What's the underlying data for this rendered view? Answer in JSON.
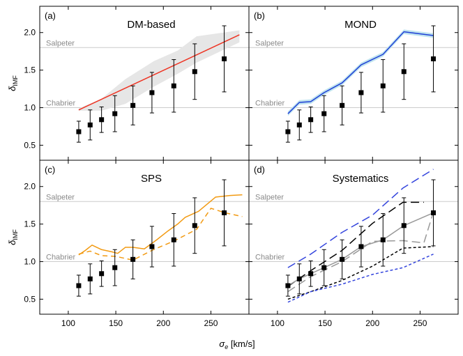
{
  "figure": {
    "xlabel": "σ",
    "xlabel_sub": "e",
    "xlabel_unit": "[km/s]",
    "ylabel": "δ",
    "ylabel_sub": "IMF",
    "xlim": [
      70,
      290
    ],
    "ylim": [
      0.3,
      2.35
    ],
    "xticks": [
      100,
      150,
      200,
      250
    ],
    "yticks": [
      0.5,
      1.0,
      1.5,
      2.0
    ],
    "xtick_labels": [
      "100",
      "150",
      "200",
      "250"
    ],
    "ytick_labels": [
      "0.5",
      "1.0",
      "1.5",
      "2.0"
    ]
  },
  "reference_lines": [
    {
      "name": "Salpeter",
      "value": 1.8
    },
    {
      "name": "Chabrier",
      "value": 1.0
    }
  ],
  "colors": {
    "dm": "#ee3322",
    "dm_band": "#e6e6e6",
    "mond": "#1f3fd6",
    "mond_band": "#bfe3ef",
    "sps": "#f29a12",
    "sys_blue": "#3344dd",
    "sys_black": "#000000",
    "sys_gray": "#999999",
    "ref_line": "#cccccc",
    "ref_text": "#8a8a8a"
  },
  "chart_data": [
    {
      "type": "line",
      "panel_label": "(a)",
      "title": "DM-based",
      "data_points": {
        "name": "observed",
        "x": [
          111,
          123,
          135,
          149,
          168,
          188,
          211,
          233,
          264
        ],
        "y": [
          0.68,
          0.77,
          0.84,
          0.92,
          1.03,
          1.2,
          1.29,
          1.48,
          1.65
        ],
        "yerr": [
          0.14,
          0.2,
          0.17,
          0.24,
          0.26,
          0.27,
          0.35,
          0.37,
          0.44
        ]
      },
      "series": [
        {
          "name": "DM-based prediction",
          "style": "solid",
          "color": "dm",
          "x": [
            111,
            280
          ],
          "y": [
            0.97,
            1.97
          ]
        }
      ],
      "bands": [
        {
          "name": "DM-based range",
          "color": "dm_band",
          "x": [
            111,
            135,
            160,
            190,
            215,
            235,
            280
          ],
          "lower": [
            0.96,
            0.96,
            1.05,
            1.28,
            1.45,
            1.6,
            1.87
          ],
          "upper": [
            0.99,
            1.12,
            1.38,
            1.62,
            1.76,
            1.95,
            2.03
          ]
        }
      ]
    },
    {
      "type": "line",
      "panel_label": "(b)",
      "title": "MOND",
      "data_points": {
        "name": "observed",
        "x": [
          111,
          123,
          135,
          149,
          168,
          188,
          211,
          233,
          264
        ],
        "y": [
          0.68,
          0.77,
          0.84,
          0.92,
          1.03,
          1.2,
          1.29,
          1.48,
          1.65
        ],
        "yerr": [
          0.14,
          0.2,
          0.17,
          0.24,
          0.26,
          0.27,
          0.35,
          0.37,
          0.44
        ]
      },
      "series": [
        {
          "name": "MOND prediction",
          "style": "solid",
          "color": "mond",
          "x": [
            111,
            123,
            135,
            149,
            168,
            188,
            211,
            233,
            264
          ],
          "y": [
            0.92,
            1.07,
            1.08,
            1.2,
            1.33,
            1.57,
            1.71,
            2.01,
            1.96
          ]
        }
      ],
      "bands": [
        {
          "name": "MOND range",
          "color": "mond_band",
          "x": [
            111,
            123,
            135,
            149,
            168,
            188,
            211,
            233,
            264
          ],
          "lower": [
            0.89,
            1.04,
            1.05,
            1.17,
            1.3,
            1.54,
            1.68,
            1.98,
            1.93
          ],
          "upper": [
            0.95,
            1.1,
            1.11,
            1.23,
            1.36,
            1.6,
            1.74,
            2.04,
            1.99
          ]
        }
      ]
    },
    {
      "type": "line",
      "panel_label": "(c)",
      "title": "SPS",
      "data_points": {
        "name": "observed",
        "x": [
          111,
          123,
          135,
          149,
          168,
          188,
          211,
          233,
          264
        ],
        "y": [
          0.68,
          0.77,
          0.84,
          0.92,
          1.03,
          1.2,
          1.29,
          1.48,
          1.65
        ],
        "yerr": [
          0.14,
          0.2,
          0.17,
          0.24,
          0.26,
          0.27,
          0.35,
          0.37,
          0.44
        ]
      },
      "series": [
        {
          "name": "SPS solid",
          "style": "solid",
          "color": "sps",
          "x": [
            111,
            118,
            125,
            135,
            146,
            152,
            160,
            168,
            180,
            193,
            205,
            215,
            223,
            237,
            255,
            270,
            283
          ],
          "y": [
            1.09,
            1.15,
            1.22,
            1.16,
            1.13,
            1.11,
            1.19,
            1.19,
            1.17,
            1.29,
            1.41,
            1.5,
            1.59,
            1.67,
            1.86,
            1.88,
            1.89
          ]
        },
        {
          "name": "SPS dashed",
          "style": "dashed",
          "color": "sps",
          "x": [
            111,
            123,
            135,
            150,
            168,
            188,
            212,
            235,
            250,
            265,
            283
          ],
          "y": [
            1.1,
            1.14,
            1.08,
            1.07,
            1.02,
            1.15,
            1.28,
            1.43,
            1.71,
            1.65,
            1.6
          ]
        }
      ],
      "bands": []
    },
    {
      "type": "line",
      "panel_label": "(d)",
      "title": "Systematics",
      "data_points": {
        "name": "observed",
        "x": [
          111,
          123,
          135,
          149,
          168,
          188,
          211,
          233,
          264
        ],
        "y": [
          0.68,
          0.77,
          0.84,
          0.92,
          1.03,
          1.2,
          1.29,
          1.48,
          1.65
        ],
        "yerr": [
          0.14,
          0.2,
          0.17,
          0.24,
          0.26,
          0.27,
          0.35,
          0.37,
          0.44
        ]
      },
      "series": [
        {
          "name": "upper blue long-dash",
          "style": "longdash",
          "color": "sys_blue",
          "x": [
            111,
            135,
            168,
            200,
            232,
            264
          ],
          "y": [
            0.92,
            1.1,
            1.39,
            1.62,
            1.98,
            2.23
          ]
        },
        {
          "name": "upper black long-dash",
          "style": "longdash",
          "color": "sys_black",
          "x": [
            111,
            135,
            168,
            200,
            232,
            254
          ],
          "y": [
            0.67,
            0.88,
            1.15,
            1.51,
            1.79,
            1.79
          ]
        },
        {
          "name": "central gray solid",
          "style": "solid",
          "color": "sys_gray",
          "x": [
            111,
            123,
            135,
            149,
            168,
            188,
            211,
            233,
            264
          ],
          "y": [
            0.68,
            0.77,
            0.84,
            0.92,
            1.03,
            1.2,
            1.29,
            1.48,
            1.65
          ]
        },
        {
          "name": "gray long-dash",
          "style": "longdash",
          "color": "sys_gray",
          "x": [
            111,
            135,
            168,
            200,
            232,
            254,
            264
          ],
          "y": [
            0.6,
            0.8,
            1.0,
            1.27,
            1.28,
            1.25,
            1.66
          ]
        },
        {
          "name": "lower black short-dash",
          "style": "shortdash",
          "color": "sys_black",
          "x": [
            111,
            135,
            168,
            200,
            232,
            264
          ],
          "y": [
            0.5,
            0.6,
            0.75,
            0.94,
            1.18,
            1.2
          ]
        },
        {
          "name": "lower blue short-dash",
          "style": "shortdash",
          "color": "sys_blue",
          "x": [
            111,
            135,
            168,
            200,
            232,
            264
          ],
          "y": [
            0.46,
            0.6,
            0.7,
            0.83,
            0.92,
            1.1
          ]
        }
      ],
      "bands": []
    }
  ]
}
